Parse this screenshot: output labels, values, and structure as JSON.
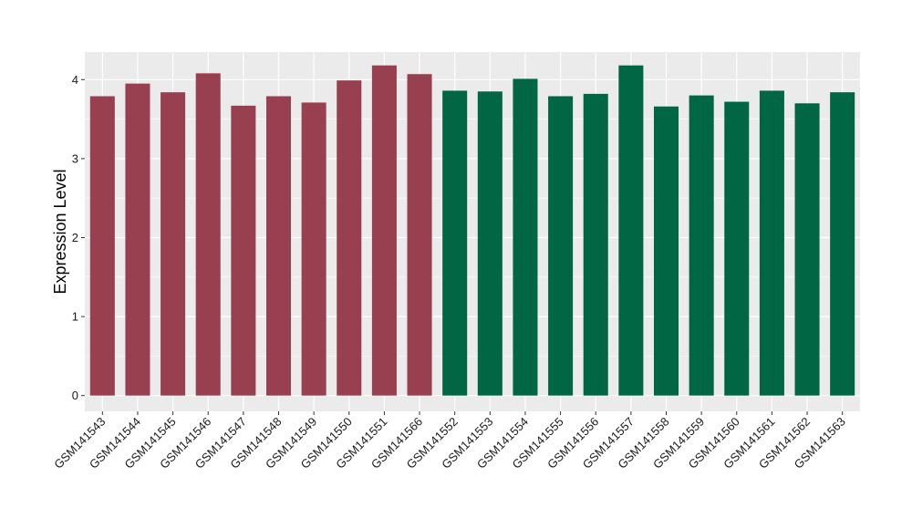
{
  "chart_data": {
    "type": "bar",
    "title": "",
    "xlabel": "",
    "ylabel": "Expression Level",
    "ylim": [
      -0.2,
      4.35
    ],
    "yticks": [
      0,
      1,
      2,
      3,
      4
    ],
    "ytick_labels": [
      "0",
      "1",
      "2",
      "3",
      "4"
    ],
    "grid": true,
    "legend": "none",
    "categories": [
      "GSM141543",
      "GSM141544",
      "GSM141545",
      "GSM141546",
      "GSM141547",
      "GSM141548",
      "GSM141549",
      "GSM141550",
      "GSM141551",
      "GSM141566",
      "GSM141552",
      "GSM141553",
      "GSM141554",
      "GSM141555",
      "GSM141556",
      "GSM141557",
      "GSM141558",
      "GSM141559",
      "GSM141560",
      "GSM141561",
      "GSM141562",
      "GSM141563"
    ],
    "values": [
      3.79,
      3.95,
      3.84,
      4.08,
      3.67,
      3.79,
      3.71,
      3.99,
      4.18,
      4.07,
      3.86,
      3.85,
      4.01,
      3.79,
      3.82,
      4.18,
      3.66,
      3.8,
      3.72,
      3.86,
      3.7,
      3.84
    ],
    "bar_colors": [
      "#98404F",
      "#98404F",
      "#98404F",
      "#98404F",
      "#98404F",
      "#98404F",
      "#98404F",
      "#98404F",
      "#98404F",
      "#98404F",
      "#006644",
      "#006644",
      "#006644",
      "#006644",
      "#006644",
      "#006644",
      "#006644",
      "#006644",
      "#006644",
      "#006644",
      "#006644",
      "#006644"
    ],
    "panel_background": "#EBEBEB",
    "grid_color": "#FFFFFF"
  }
}
